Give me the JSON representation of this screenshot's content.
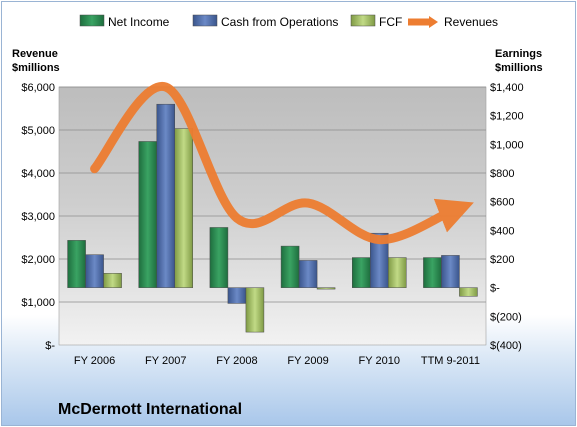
{
  "chart_data": {
    "type": "bar",
    "title": "McDermott International",
    "categories": [
      "FY 2006",
      "FY 2007",
      "FY 2008",
      "FY 2009",
      "FY 2010",
      "TTM 9-2011"
    ],
    "series": [
      {
        "name": "Net Income",
        "axis": "right",
        "kind": "bar",
        "color": "#2e8b57",
        "values": [
          330,
          1020,
          420,
          290,
          210,
          210
        ]
      },
      {
        "name": "Cash from Operations",
        "axis": "right",
        "kind": "bar",
        "color": "#4f6fae",
        "values": [
          230,
          1280,
          -110,
          190,
          380,
          225
        ]
      },
      {
        "name": "FCF",
        "axis": "right",
        "kind": "bar",
        "color": "#a8c46c",
        "values": [
          100,
          1110,
          -310,
          -10,
          210,
          -60
        ]
      },
      {
        "name": "Revenues",
        "axis": "left",
        "kind": "line",
        "color": "#ed7d31",
        "values": [
          4100,
          6000,
          2950,
          3300,
          2450,
          3100
        ]
      }
    ],
    "left_axis": {
      "label_line1": "Revenue",
      "label_line2": "$millions",
      "range": [
        0,
        6000
      ],
      "ticks": [
        0,
        1000,
        2000,
        3000,
        4000,
        5000,
        6000
      ],
      "tick_labels": [
        "$-",
        "$1,000",
        "$2,000",
        "$3,000",
        "$4,000",
        "$5,000",
        "$6,000"
      ]
    },
    "right_axis": {
      "label_line1": "Earnings",
      "label_line2": "$millions",
      "range": [
        -400,
        1400
      ],
      "ticks": [
        -400,
        -200,
        0,
        200,
        400,
        600,
        800,
        1000,
        1200,
        1400
      ],
      "tick_labels": [
        "$(400)",
        "$(200)",
        "$-",
        "$200",
        "$400",
        "$600",
        "$800",
        "$1,000",
        "$1,200",
        "$1,400"
      ]
    },
    "legend_position": "top",
    "grid": true
  }
}
